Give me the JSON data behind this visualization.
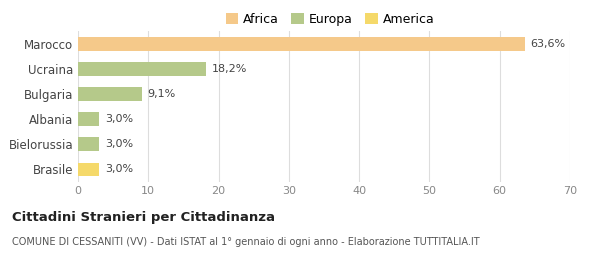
{
  "categories": [
    "Marocco",
    "Ucraina",
    "Bulgaria",
    "Albania",
    "Bielorussia",
    "Brasile"
  ],
  "values": [
    63.6,
    18.2,
    9.1,
    3.0,
    3.0,
    3.0
  ],
  "labels": [
    "63,6%",
    "18,2%",
    "9,1%",
    "3,0%",
    "3,0%",
    "3,0%"
  ],
  "bar_colors": [
    "#f5c98a",
    "#b5c98a",
    "#b5c98a",
    "#b5c98a",
    "#b5c98a",
    "#f5d96a"
  ],
  "legend_items": [
    {
      "label": "Africa",
      "color": "#f5c98a"
    },
    {
      "label": "Europa",
      "color": "#b5c98a"
    },
    {
      "label": "America",
      "color": "#f5d96a"
    }
  ],
  "xlim": [
    0,
    70
  ],
  "xticks": [
    0,
    10,
    20,
    30,
    40,
    50,
    60,
    70
  ],
  "title": "Cittadini Stranieri per Cittadinanza",
  "subtitle": "COMUNE DI CESSANITI (VV) - Dati ISTAT al 1° gennaio di ogni anno - Elaborazione TUTTITALIA.IT",
  "background_color": "#ffffff",
  "grid_color": "#dddddd",
  "bar_height": 0.55
}
